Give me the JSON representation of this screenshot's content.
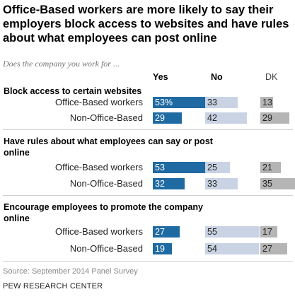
{
  "colors": {
    "yes": "#1f6aa3",
    "no": "#c9d3e4",
    "dk": "#b5b5b5"
  },
  "chart_data": {
    "type": "bar",
    "title": "Office-Based workers are more likely to say their employers block access to websites and have rules about what employees can post online",
    "subtitle": "Does the company you work for ...",
    "columns": [
      "Yes",
      "No",
      "DK"
    ],
    "groups": [
      {
        "label": "Block access to certain websites",
        "rows": [
          {
            "label": "Office-Based workers",
            "yes": 53,
            "no": 33,
            "dk": 13,
            "yes_label": "53%",
            "no_label": "33",
            "dk_label": "13"
          },
          {
            "label": "Non-Office-Based",
            "yes": 29,
            "no": 42,
            "dk": 29,
            "yes_label": "29",
            "no_label": "42",
            "dk_label": "29"
          }
        ]
      },
      {
        "label": "Have rules about what employees can say or post online",
        "rows": [
          {
            "label": "Office-Based workers",
            "yes": 53,
            "no": 25,
            "dk": 21,
            "yes_label": "53",
            "no_label": "25",
            "dk_label": "21"
          },
          {
            "label": "Non-Office-Based",
            "yes": 32,
            "no": 33,
            "dk": 35,
            "yes_label": "32",
            "no_label": "33",
            "dk_label": "35"
          }
        ]
      },
      {
        "label": "Encourage employees to promote the company online",
        "rows": [
          {
            "label": "Office-Based workers",
            "yes": 27,
            "no": 55,
            "dk": 17,
            "yes_label": "27",
            "no_label": "55",
            "dk_label": "17"
          },
          {
            "label": "Non-Office-Based",
            "yes": 19,
            "no": 54,
            "dk": 27,
            "yes_label": "19",
            "no_label": "54",
            "dk_label": "27"
          }
        ]
      }
    ]
  },
  "footer": {
    "source": "Source: September 2014 Panel Survey",
    "org": "PEW RESEARCH CENTER"
  }
}
